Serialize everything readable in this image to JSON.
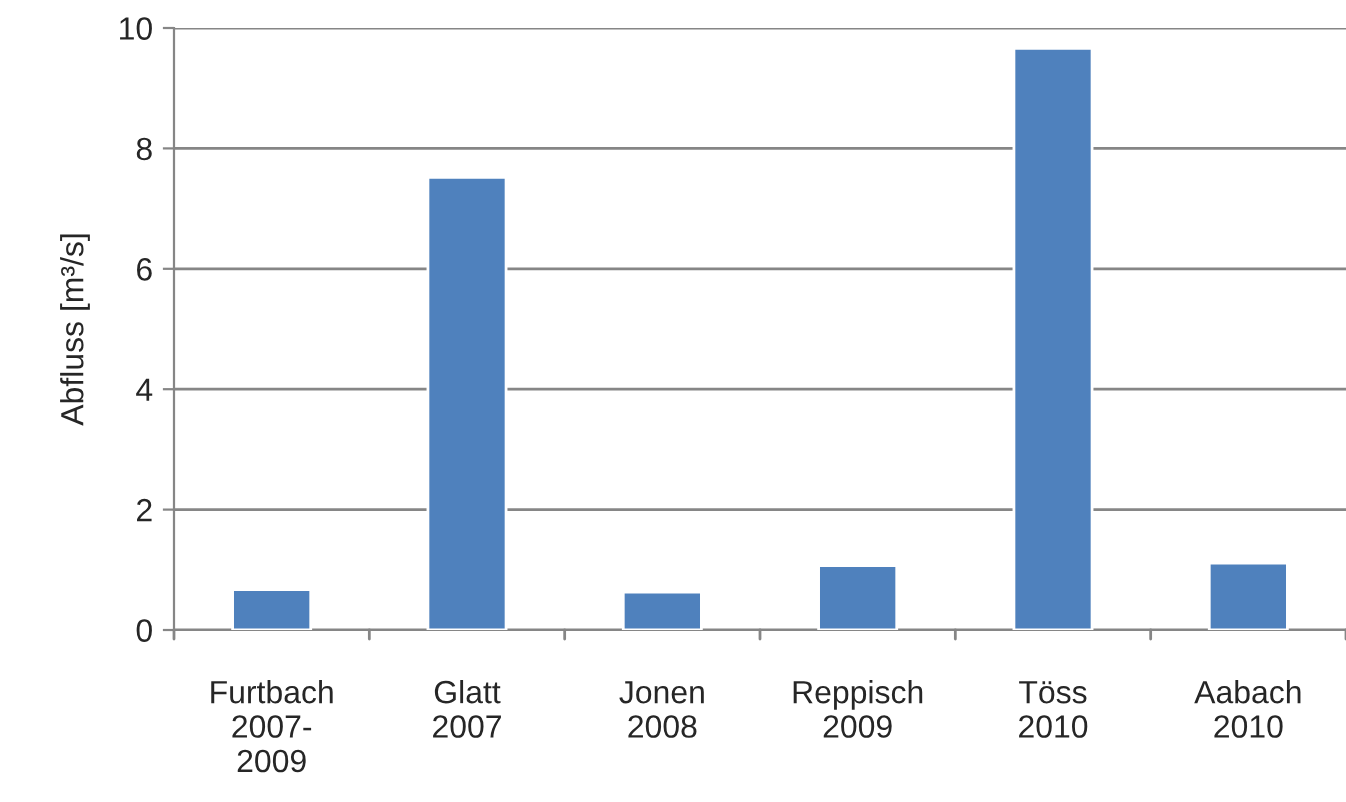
{
  "chart_data": {
    "type": "bar",
    "ylabel": "Abfluss [m³/s]",
    "categories": [
      "Furtbach\n2007-\n2009",
      "Glatt\n2007",
      "Jonen\n2008",
      "Reppisch\n2009",
      "Töss\n2010",
      "Aabach\n2010"
    ],
    "values": [
      0.67,
      7.52,
      0.63,
      1.07,
      9.66,
      1.11
    ],
    "color": "#4f81bd",
    "ylim": [
      0,
      10
    ],
    "yticks": [
      0,
      2,
      4,
      6,
      8,
      10
    ],
    "grid": "y",
    "legend": false
  }
}
